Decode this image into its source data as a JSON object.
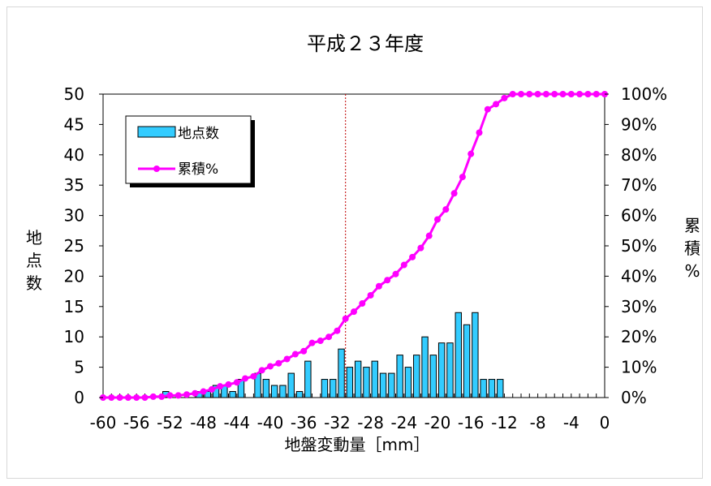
{
  "chart_data": {
    "type": "bar",
    "title": "平成２３年度",
    "xlabel": "地盤変動量［mm］",
    "ylabel": "地点数",
    "y2label": "累積%",
    "xlim": [
      -60,
      0
    ],
    "ylim": [
      0,
      50
    ],
    "y2lim": [
      0,
      100
    ],
    "x_ticks": [
      "-60",
      "-56",
      "-52",
      "-48",
      "-44",
      "-40",
      "-36",
      "-32",
      "-28",
      "-24",
      "-20",
      "-16",
      "-12",
      "-8",
      "-4",
      "0"
    ],
    "y_ticks": [
      "0",
      "5",
      "10",
      "15",
      "20",
      "25",
      "30",
      "35",
      "40",
      "45",
      "50"
    ],
    "y2_ticks": [
      "0%",
      "10%",
      "20%",
      "30%",
      "40%",
      "50%",
      "60%",
      "70%",
      "80%",
      "90%",
      "100%"
    ],
    "reference_line_x": -31,
    "legend_position": "top-left",
    "colors": {
      "bar_fill": "#33CCFF",
      "bar_stroke": "#000000",
      "line": "#FF00FF",
      "reference": "#C00000"
    },
    "series": [
      {
        "name": "地点数",
        "type": "bar",
        "x": [
          -52,
          -50,
          -49,
          -48,
          -47,
          -46,
          -45,
          -44,
          -43,
          -42,
          -41,
          -40,
          -39,
          -38,
          -37,
          -36,
          -35,
          -34,
          -33,
          -32,
          -31,
          -30,
          -29,
          -28,
          -27,
          -26,
          -25,
          -24,
          -23,
          -22,
          -21,
          -20,
          -19,
          -18,
          -17,
          -16,
          -15,
          -14,
          -13,
          -12,
          -11
        ],
        "values": [
          1,
          0,
          0,
          1,
          1,
          2,
          2,
          1,
          3,
          0,
          4,
          3,
          2,
          2,
          4,
          1,
          6,
          0,
          3,
          3,
          8,
          5,
          6,
          5,
          6,
          4,
          4,
          7,
          5,
          7,
          10,
          7,
          9,
          9,
          14,
          12,
          14,
          3,
          3,
          3,
          0
        ]
      },
      {
        "name": "累積%",
        "type": "line",
        "x": [
          -60,
          -59,
          -58,
          -57,
          -56,
          -55,
          -54,
          -53,
          -52,
          -51,
          -50,
          -49,
          -48,
          -47,
          -46,
          -45,
          -44,
          -43,
          -42,
          -41,
          -40,
          -39,
          -38,
          -37,
          -36,
          -35,
          -34,
          -33,
          -32,
          -31,
          -30,
          -29,
          -28,
          -27,
          -26,
          -25,
          -24,
          -23,
          -22,
          -21,
          -20,
          -19,
          -18,
          -17,
          -16,
          -15,
          -14,
          -13,
          -12,
          -11,
          -10,
          -9,
          -8,
          -7,
          -6,
          -5,
          -4,
          -3,
          -2,
          -1,
          0
        ],
        "values": [
          0,
          0,
          0,
          0,
          0,
          0,
          0.3,
          0.3,
          0.7,
          0.7,
          1.0,
          1.4,
          2.0,
          2.7,
          3.7,
          4.3,
          5.0,
          6.3,
          7.0,
          9.0,
          10.3,
          11.3,
          12.7,
          14.3,
          15.3,
          18.0,
          18.7,
          20.0,
          22.0,
          26.0,
          28.3,
          31.0,
          33.7,
          36.7,
          38.7,
          40.7,
          43.7,
          46.3,
          49.3,
          53.3,
          58.7,
          62.0,
          67.3,
          72.7,
          80.3,
          87.3,
          95.0,
          96.7,
          98.7,
          100,
          100,
          100,
          100,
          100,
          100,
          100,
          100,
          100,
          100,
          100,
          100
        ]
      }
    ]
  }
}
